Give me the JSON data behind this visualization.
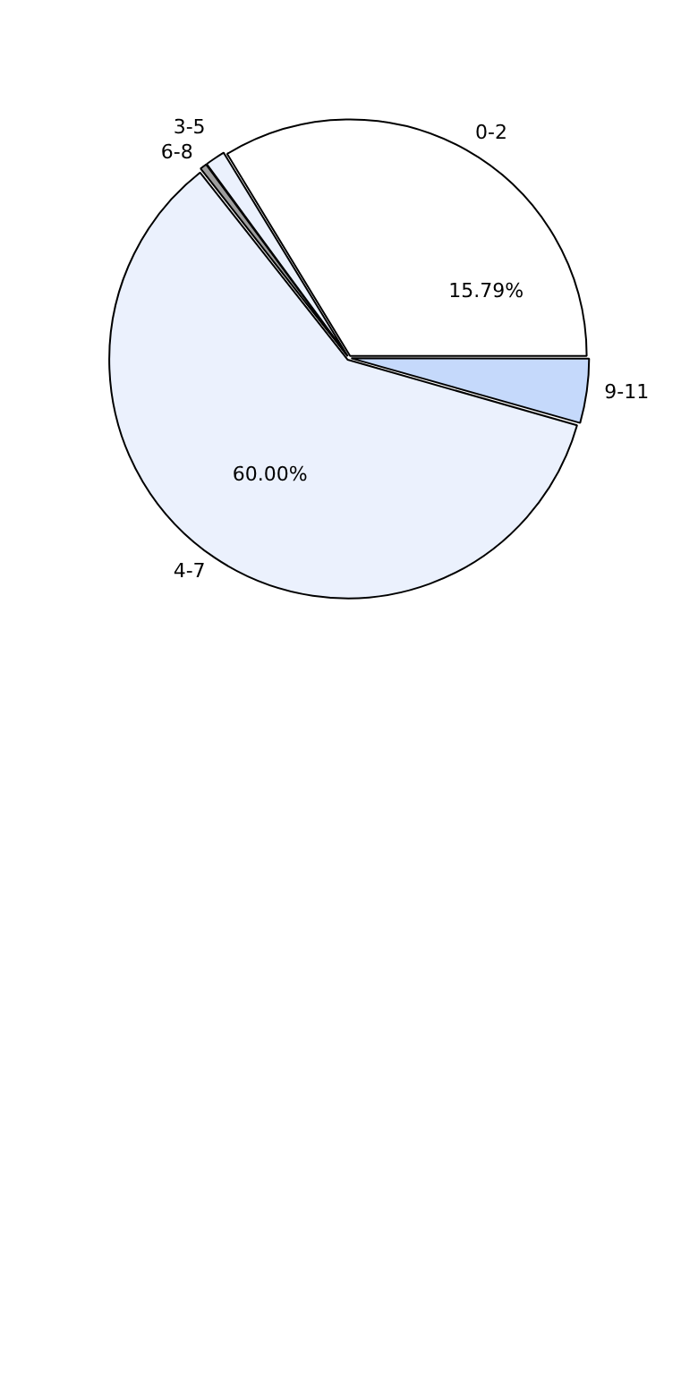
{
  "chart_data": {
    "type": "pie",
    "categories": [
      "9-11",
      "4-7",
      "6-8",
      "3-5",
      "0-2"
    ],
    "values": [
      4.4,
      60,
      0.5,
      1.4,
      33.7
    ],
    "colors": [
      "#c5d9fb",
      "#ebf1fd",
      "#9e9e9e",
      "#ebf1fd",
      "#ffffff"
    ],
    "value_labels": [
      null,
      "60.00%",
      null,
      null,
      null
    ],
    "annotations": [
      "15.79%"
    ],
    "legend": false
  }
}
